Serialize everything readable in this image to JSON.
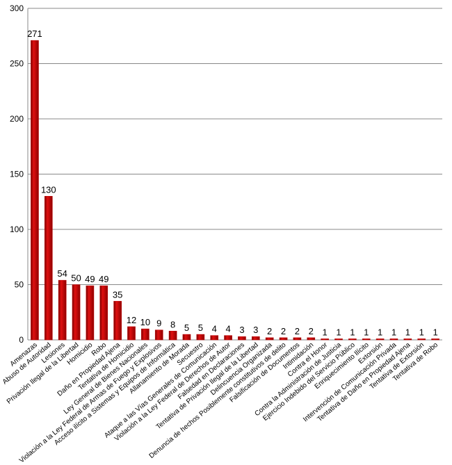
{
  "chart_data": {
    "type": "bar",
    "categories": [
      "Amenazas",
      "Abuso de Autoridad",
      "Lesiones",
      "Privación Ilegal de la Libertad",
      "Homicidio",
      "Robo",
      "Daño en Propiedad Ajena",
      "Tentativa de Homicidio",
      "Ley General de Bienes Nacionales",
      "Violación a la Ley Federal de Armas de Fuego y Explosivos",
      "Acceso ilícito a Sistemas y Equipos de Informática",
      "Allanamiento de Morada",
      "Secuestro",
      "Ataque a las Vías Generales de Comunicación",
      "Violación a la Ley Federal de Derechos de Autor",
      "Falsedad en Declaraciones",
      "Tentativa de Privación Ilegal de la Libertad",
      "Delincuencia Organizada",
      "Denuncia de hechos Posiblemente constitutivos de delito",
      "Falsificación de Documentos",
      "Intimidación",
      "Contra el Honor",
      "Contra la Administración de Justicia",
      "Ejercicio Indebido del Servicio Público",
      "Enriquecimiento Ilícito",
      "Extorsión",
      "Intervención de Comunicación Privada",
      "Tentativa de Daño en Propiedad Ajena",
      "Tentativa de Extorsión",
      "Tentativa de Robo"
    ],
    "values": [
      271,
      130,
      54,
      50,
      49,
      49,
      35,
      12,
      10,
      9,
      8,
      5,
      5,
      4,
      4,
      3,
      3,
      2,
      2,
      2,
      2,
      1,
      1,
      1,
      1,
      1,
      1,
      1,
      1,
      1
    ],
    "color": "#c00000",
    "ylim": [
      0,
      300
    ],
    "yticks": [
      0,
      50,
      100,
      150,
      200,
      250,
      300
    ],
    "grid": true
  }
}
